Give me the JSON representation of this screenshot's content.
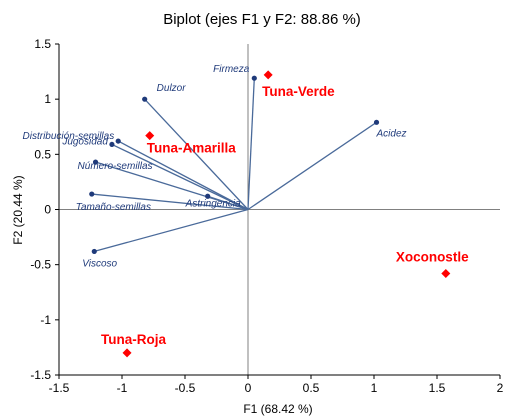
{
  "chart_data": {
    "type": "scatter",
    "title": "Biplot (ejes F1 y F2: 88.86 %)",
    "xlabel": "F1 (68.42 %)",
    "ylabel": "F2 (20.44 %)",
    "xlim": [
      -1.5,
      2
    ],
    "ylim": [
      -1.5,
      1.5
    ],
    "x_ticks": [
      "-1.5",
      "-1",
      "-0.5",
      "0",
      "0.5",
      "1",
      "1.5",
      "2"
    ],
    "y_ticks": [
      "-1.5",
      "-1",
      "-0.5",
      "0",
      "0.5",
      "1",
      "1.5"
    ],
    "grid": false,
    "colors": {
      "variables": "#4a6a9a",
      "variable_labels": "#1f3a7a",
      "observations": "#ff0000",
      "axes": "#000000",
      "zero_lines": "#808080"
    },
    "variables": [
      {
        "name": "Firmeza",
        "x": 0.05,
        "y": 1.19
      },
      {
        "name": "Dulzor",
        "x": -0.82,
        "y": 1.0
      },
      {
        "name": "Acidez",
        "x": 1.02,
        "y": 0.79
      },
      {
        "name": "Distribución-semillas",
        "x": -1.03,
        "y": 0.62
      },
      {
        "name": "Jugosidad",
        "x": -1.08,
        "y": 0.59
      },
      {
        "name": "Número-semillas",
        "x": -1.21,
        "y": 0.43
      },
      {
        "name": "Tamaño-semillas",
        "x": -1.24,
        "y": 0.14
      },
      {
        "name": "Astringencia",
        "x": -0.32,
        "y": 0.12
      },
      {
        "name": "Viscoso",
        "x": -1.22,
        "y": -0.38
      }
    ],
    "observations": [
      {
        "name": "Tuna-Verde",
        "x": 0.16,
        "y": 1.22
      },
      {
        "name": "Tuna-Amarilla",
        "x": -0.78,
        "y": 0.67
      },
      {
        "name": "Xoconostle",
        "x": 1.57,
        "y": -0.58
      },
      {
        "name": "Tuna-Roja",
        "x": -0.96,
        "y": -1.3
      }
    ]
  }
}
